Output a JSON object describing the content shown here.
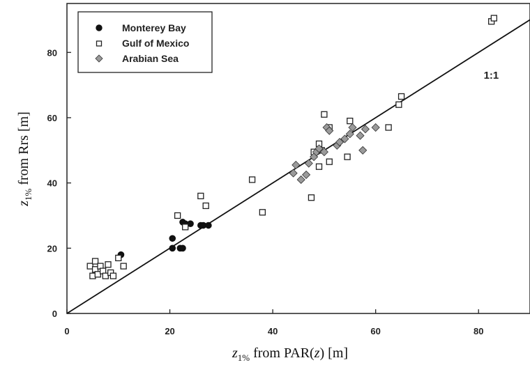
{
  "chart_data": {
    "type": "scatter",
    "xlabel": {
      "pre": "z",
      "sub": "1%",
      "mid": " from PAR(",
      "italic": "z",
      "post": ")  [m]"
    },
    "ylabel": {
      "pre": "z",
      "sub": "1%",
      "post": " from Rrs  [m]"
    },
    "xlim": [
      0,
      90
    ],
    "ylim": [
      0,
      95
    ],
    "xticks": [
      "0",
      "20",
      "40",
      "60",
      "80"
    ],
    "yticks": [
      "0",
      "20",
      "40",
      "60",
      "80"
    ],
    "grid": false,
    "legend_position": "top-left",
    "reference_line": {
      "label": "1:1",
      "from": [
        0,
        0
      ],
      "to": [
        90,
        90
      ]
    },
    "series": [
      {
        "name": "Monterey Bay",
        "marker": "filled-circle",
        "color": "#111111",
        "x": [
          10.5,
          20.5,
          20.5,
          22.0,
          22.5,
          22.5,
          23.0,
          24.0,
          26.0,
          26.5,
          27.5
        ],
        "y": [
          18.0,
          23.0,
          20.0,
          20.0,
          20.0,
          28.0,
          27.5,
          27.5,
          27.0,
          27.0,
          27.0
        ]
      },
      {
        "name": "Gulf of Mexico",
        "marker": "open-square",
        "color": "#222222",
        "x": [
          4.5,
          5.0,
          5.5,
          5.5,
          6.0,
          6.5,
          7.0,
          7.5,
          8.0,
          8.5,
          9.0,
          10.0,
          11.0,
          21.5,
          23.0,
          26.0,
          27.0,
          36.0,
          38.0,
          47.5,
          48.0,
          49.0,
          49.0,
          49.5,
          50.0,
          51.0,
          51.0,
          54.5,
          55.0,
          62.5,
          64.5,
          65.0,
          82.5,
          83.0
        ],
        "y": [
          14.5,
          11.5,
          13.5,
          16.0,
          12.0,
          14.5,
          13.0,
          11.5,
          15.0,
          12.5,
          11.5,
          17.0,
          14.5,
          30.0,
          26.5,
          36.0,
          33.0,
          41.0,
          31.0,
          35.5,
          49.5,
          45.0,
          52.0,
          50.0,
          61.0,
          57.0,
          46.5,
          48.0,
          59.0,
          57.0,
          64.0,
          66.5,
          89.5,
          90.5
        ]
      },
      {
        "name": "Arabian Sea",
        "marker": "filled-diamond",
        "color": "#9a9a9a",
        "x": [
          44.0,
          44.5,
          45.5,
          46.5,
          47.0,
          48.0,
          48.5,
          49.0,
          50.0,
          50.5,
          51.0,
          52.5,
          53.0,
          54.0,
          55.0,
          55.5,
          57.0,
          57.5,
          58.0,
          60.0
        ],
        "y": [
          43.0,
          45.5,
          41.0,
          42.5,
          46.0,
          48.0,
          49.5,
          50.5,
          49.5,
          57.0,
          56.0,
          51.5,
          52.5,
          53.5,
          55.0,
          57.0,
          54.5,
          50.0,
          56.5,
          57.0
        ]
      }
    ]
  }
}
